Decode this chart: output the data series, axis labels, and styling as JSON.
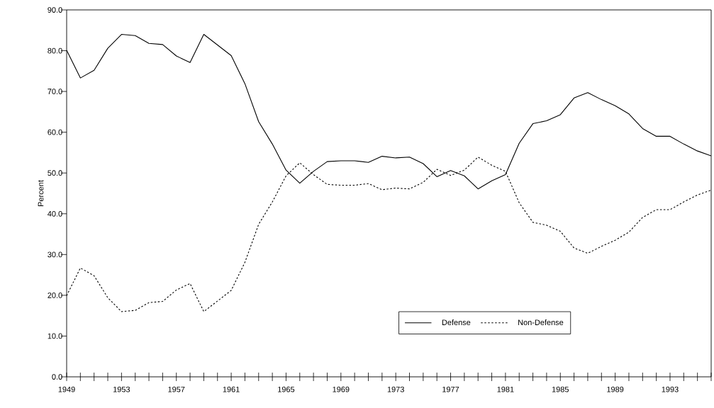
{
  "chart_data": {
    "type": "line",
    "ylabel": "Percent",
    "x": [
      1949,
      1950,
      1951,
      1952,
      1953,
      1954,
      1955,
      1956,
      1957,
      1958,
      1959,
      1960,
      1961,
      1962,
      1963,
      1964,
      1965,
      1966,
      1967,
      1968,
      1969,
      1970,
      1971,
      1972,
      1973,
      1974,
      1975,
      1976,
      1977,
      1978,
      1979,
      1980,
      1981,
      1982,
      1983,
      1984,
      1985,
      1986,
      1987,
      1988,
      1989,
      1990,
      1991,
      1992,
      1993,
      1994,
      1995,
      1996
    ],
    "series": [
      {
        "name": "Defense",
        "color": "#000000",
        "line_style": "solid",
        "values": [
          80.1,
          73.3,
          75.2,
          80.6,
          84.0,
          83.7,
          81.8,
          81.5,
          78.7,
          77.1,
          84.0,
          81.4,
          78.8,
          71.9,
          62.6,
          57.1,
          50.7,
          47.5,
          50.4,
          52.8,
          53.0,
          53.0,
          52.6,
          54.1,
          53.7,
          53.9,
          52.3,
          49.1,
          50.6,
          49.3,
          46.1,
          48.1,
          49.6,
          57.3,
          62.1,
          62.8,
          64.3,
          68.4,
          69.7,
          68.0,
          66.5,
          64.5,
          60.9,
          59.0,
          59.0,
          57.1,
          55.4,
          54.2
        ]
      },
      {
        "name": "Non-Defense",
        "color": "#000000",
        "line_style": "dashed",
        "values": [
          19.9,
          26.7,
          24.8,
          19.4,
          16.0,
          16.3,
          18.2,
          18.5,
          21.3,
          22.9,
          16.0,
          18.6,
          21.2,
          28.1,
          37.4,
          42.9,
          49.3,
          52.5,
          49.6,
          47.2,
          47.0,
          47.0,
          47.4,
          45.9,
          46.3,
          46.1,
          47.7,
          50.9,
          49.4,
          50.7,
          53.9,
          51.9,
          50.4,
          42.7,
          37.9,
          37.2,
          35.7,
          31.6,
          30.3,
          32.0,
          33.5,
          35.5,
          39.1,
          41.0,
          41.0,
          42.9,
          44.6,
          45.8
        ]
      }
    ],
    "xlim": [
      1949,
      1996
    ],
    "xticks": [
      1949,
      {
        "value": 1950,
        "label": null
      },
      {
        "value": 1951,
        "label": null
      },
      {
        "value": 1952,
        "label": null
      },
      1953,
      {
        "value": 1954,
        "label": null
      },
      {
        "value": 1955,
        "label": null
      },
      {
        "value": 1956,
        "label": null
      },
      1957,
      {
        "value": 1958,
        "label": null
      },
      {
        "value": 1959,
        "label": null
      },
      {
        "value": 1960,
        "label": null
      },
      1961,
      {
        "value": 1962,
        "label": null
      },
      {
        "value": 1963,
        "label": null
      },
      {
        "value": 1964,
        "label": null
      },
      1965,
      {
        "value": 1966,
        "label": null
      },
      {
        "value": 1967,
        "label": null
      },
      {
        "value": 1968,
        "label": null
      },
      1969,
      {
        "value": 1970,
        "label": null
      },
      {
        "value": 1971,
        "label": null
      },
      {
        "value": 1972,
        "label": null
      },
      1973,
      {
        "value": 1974,
        "label": null
      },
      {
        "value": 1975,
        "label": null
      },
      {
        "value": 1976,
        "label": null
      },
      1977,
      {
        "value": 1978,
        "label": null
      },
      {
        "value": 1979,
        "label": null
      },
      {
        "value": 1980,
        "label": null
      },
      1981,
      {
        "value": 1982,
        "label": null
      },
      {
        "value": 1983,
        "label": null
      },
      {
        "value": 1984,
        "label": null
      },
      1985,
      {
        "value": 1986,
        "label": null
      },
      {
        "value": 1987,
        "label": null
      },
      {
        "value": 1988,
        "label": null
      },
      1989,
      {
        "value": 1990,
        "label": null
      },
      {
        "value": 1991,
        "label": null
      },
      {
        "value": 1992,
        "label": null
      },
      1993,
      {
        "value": 1994,
        "label": null
      },
      {
        "value": 1995,
        "label": null
      },
      {
        "value": 1996,
        "label": null
      }
    ],
    "ylim": [
      0,
      90
    ],
    "yticks": [
      {
        "value": 0,
        "label": "0.0"
      },
      {
        "value": 10,
        "label": "10.0"
      },
      {
        "value": 20,
        "label": "20.0"
      },
      {
        "value": 30,
        "label": "30.0"
      },
      {
        "value": 40,
        "label": "40.0"
      },
      {
        "value": 50,
        "label": "50.0"
      },
      {
        "value": 60,
        "label": "60.0"
      },
      {
        "value": 70,
        "label": "70.0"
      },
      {
        "value": 80,
        "label": "80.0"
      },
      {
        "value": 90,
        "label": "90.0"
      }
    ],
    "grid": false,
    "legend": "bottom right",
    "marker": "none"
  }
}
